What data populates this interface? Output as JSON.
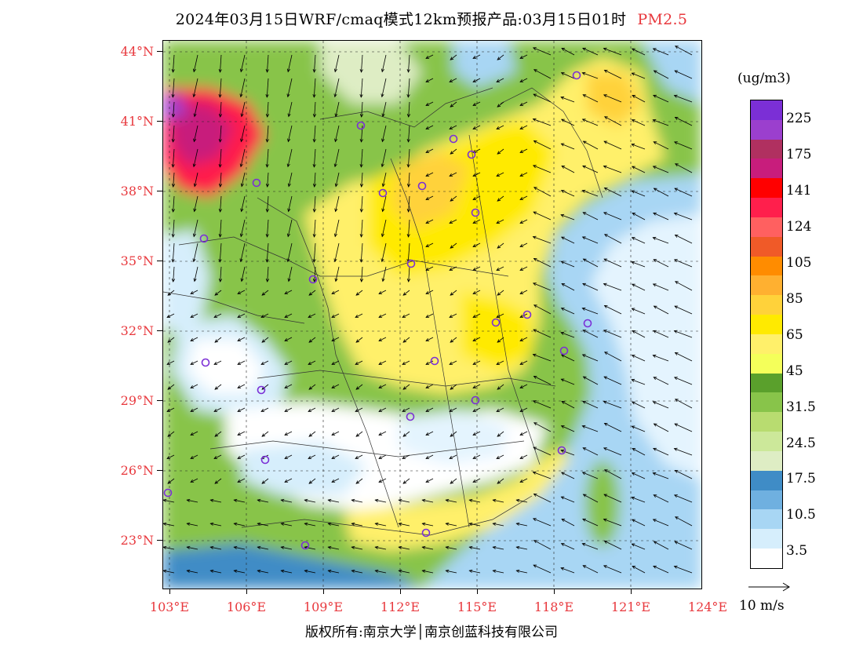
{
  "title": {
    "main": "2024年03月15日WRF/cmaq模式12km预报产品:03月15日01时",
    "pollutant": "PM2.5"
  },
  "map": {
    "lon_range": [
      103,
      124
    ],
    "lat_range": [
      21,
      44.5
    ],
    "lat_labels": [
      "44°N",
      "41°N",
      "38°N",
      "35°N",
      "32°N",
      "29°N",
      "26°N",
      "23°N"
    ],
    "lon_labels": [
      "103°E",
      "106°E",
      "109°E",
      "112°E",
      "115°E",
      "118°E",
      "121°E",
      "124°E"
    ]
  },
  "colorbar": {
    "unit": "(ug/m3)",
    "colors": [
      "#7b2fd6",
      "#9b3fce",
      "#b03060",
      "#c81d7c",
      "#ff0000",
      "#ff1f4c",
      "#ff6060",
      "#f05a28",
      "#ff8c00",
      "#ffb030",
      "#ffd23a",
      "#ffea00",
      "#fff06a",
      "#f4ff5a",
      "#5aa02c",
      "#88c44a",
      "#b8dc70",
      "#cce89a",
      "#deedc4",
      "#3f8cc6",
      "#6fb0e0",
      "#a8d6f4",
      "#d6eefc",
      "#ffffff"
    ],
    "labels": [
      "225",
      "175",
      "141",
      "124",
      "105",
      "85",
      "65",
      "45",
      "31.5",
      "24.5",
      "17.5",
      "10.5",
      "3.5"
    ]
  },
  "wind": {
    "label": "10 m/s"
  },
  "copyright": "版权所有:南京大学│南京创蓝科技有限公司"
}
